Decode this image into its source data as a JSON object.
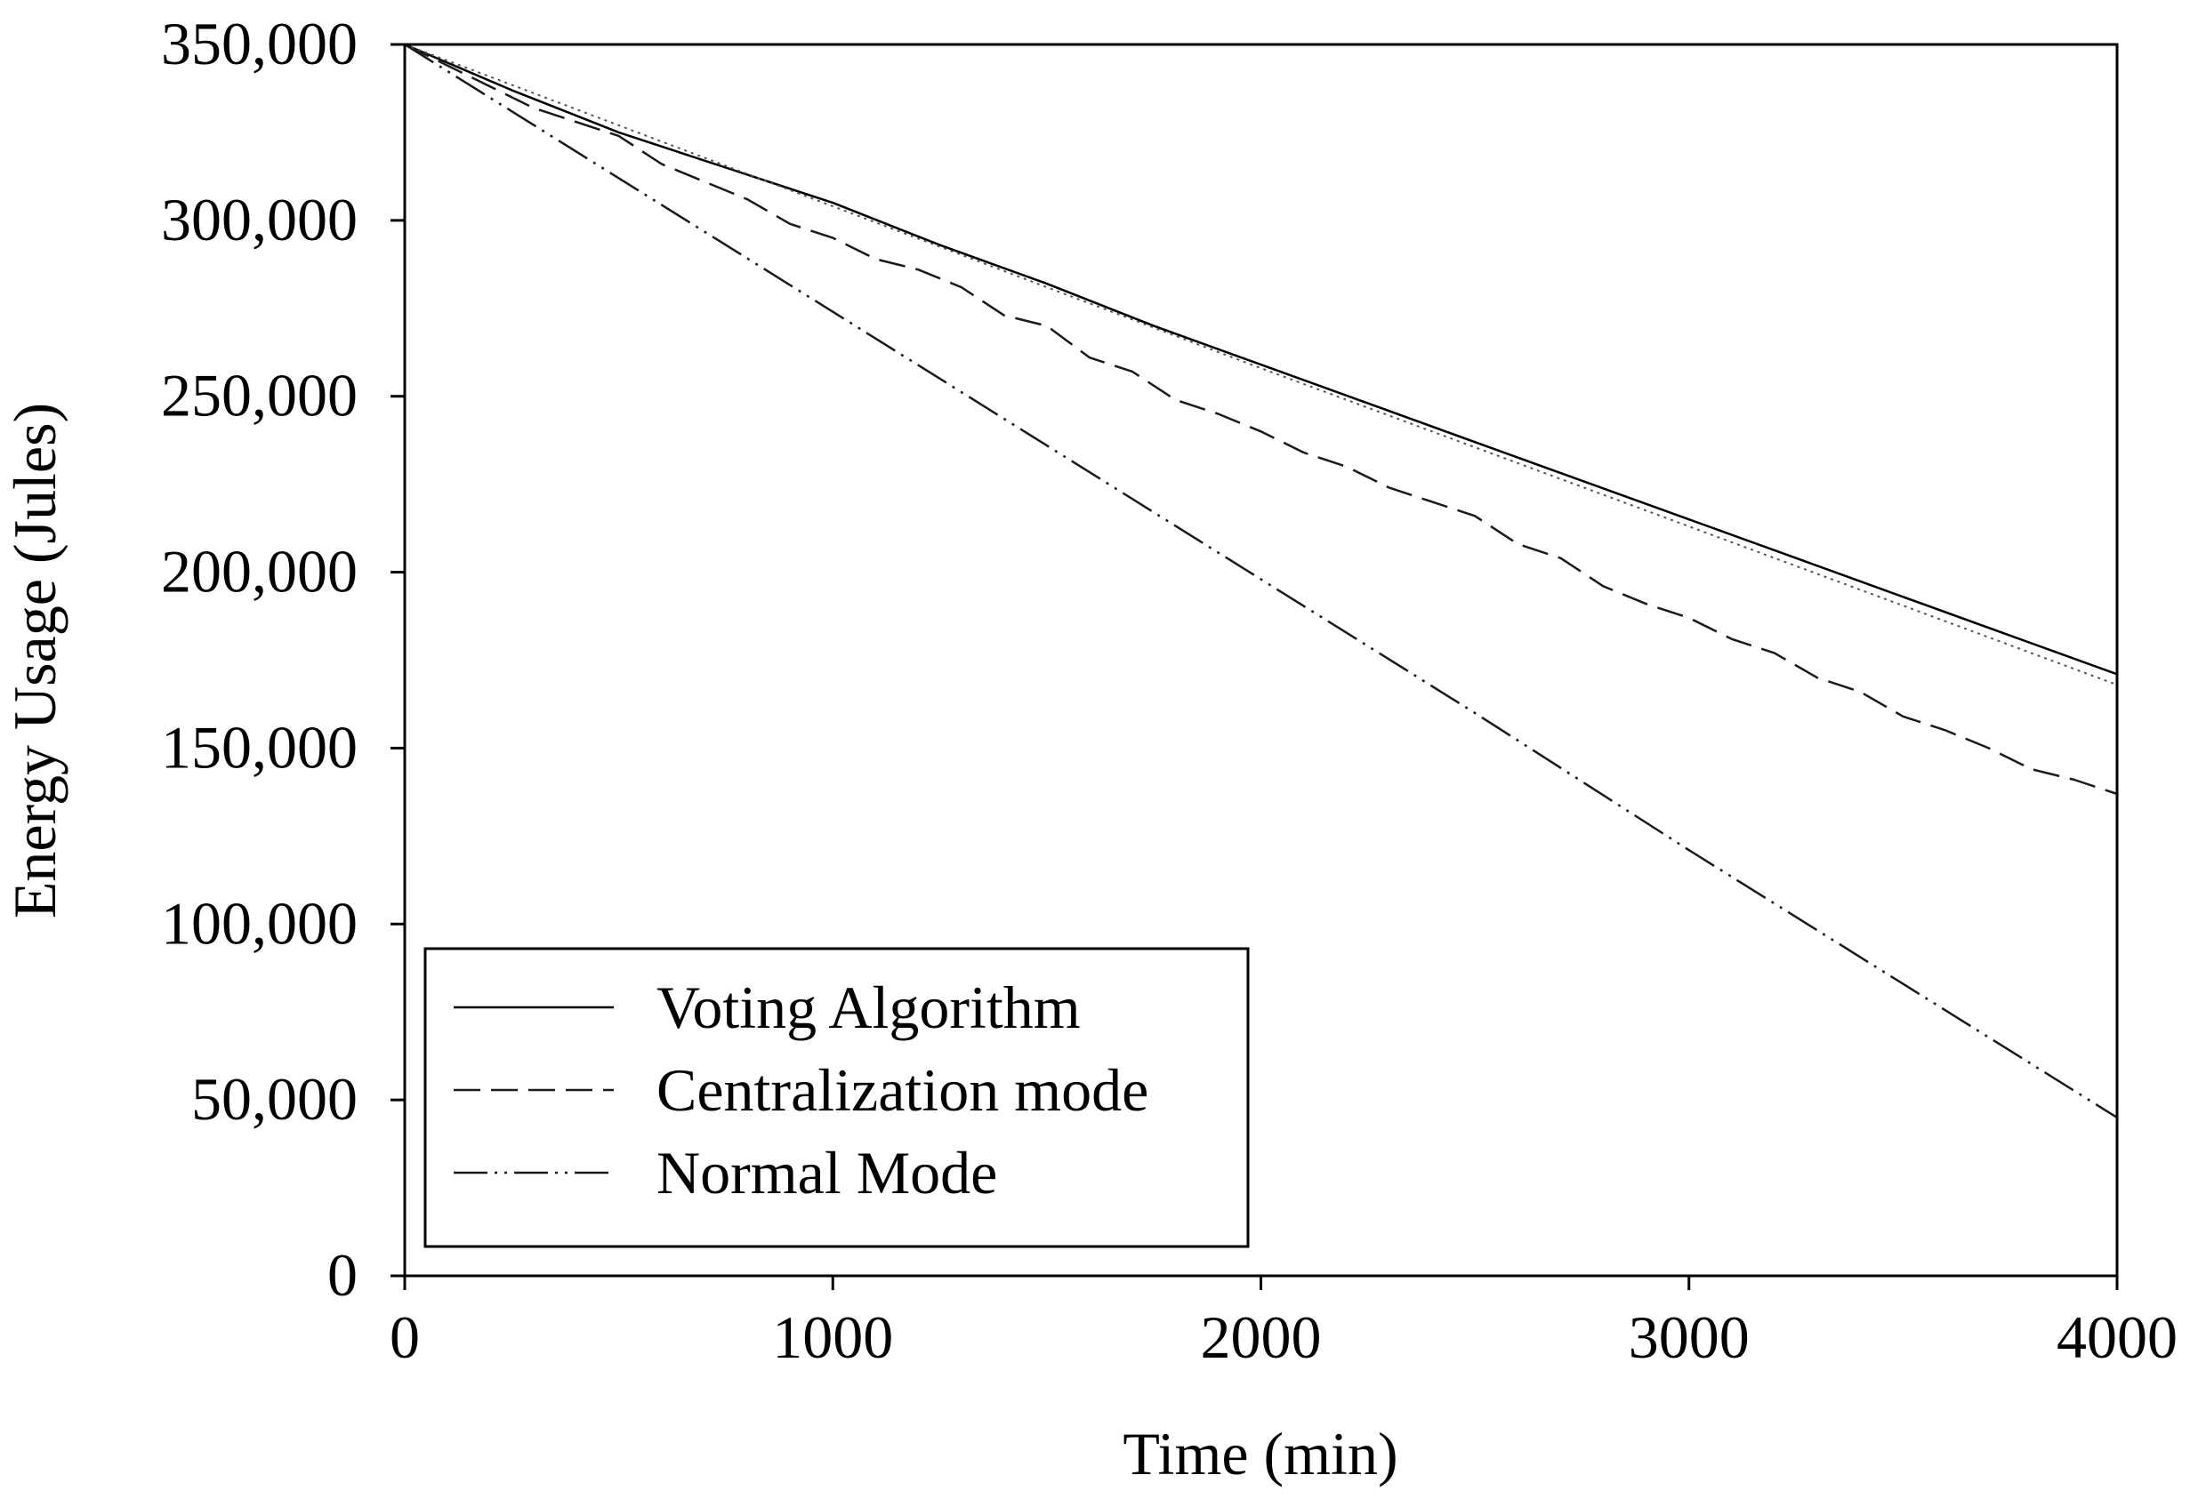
{
  "chart_data": {
    "type": "line",
    "title": "",
    "xlabel": "Time (min)",
    "ylabel": "Energy Usage (Jules)",
    "xlim": [
      0,
      4000
    ],
    "ylim": [
      0,
      350000
    ],
    "x_ticks": [
      0,
      1000,
      2000,
      3000,
      4000
    ],
    "x_tick_labels": [
      "0",
      "1000",
      "2000",
      "3000",
      "4000"
    ],
    "y_ticks": [
      0,
      50000,
      100000,
      150000,
      200000,
      250000,
      300000,
      350000
    ],
    "y_tick_labels": [
      "0",
      "50,000",
      "100,000",
      "150,000",
      "200,000",
      "250,000",
      "300,000",
      "350,000"
    ],
    "grid": false,
    "legend_position": "bottom-left",
    "series": [
      {
        "name": "Voting Algorithm",
        "style": "solid",
        "x": [
          0,
          250,
          500,
          750,
          1000,
          1250,
          1500,
          1750,
          2000,
          2250,
          2500,
          2750,
          3000,
          3250,
          3500,
          3750,
          4000
        ],
        "y": [
          350000,
          337000,
          325000,
          315000,
          305000,
          293000,
          282000,
          270000,
          259000,
          248000,
          237000,
          226000,
          215000,
          204000,
          193000,
          182000,
          171000
        ]
      },
      {
        "name": "Centralization mode",
        "style": "dashed",
        "x": [
          0,
          100,
          200,
          300,
          400,
          500,
          600,
          700,
          800,
          900,
          1000,
          1100,
          1200,
          1300,
          1400,
          1500,
          1600,
          1700,
          1800,
          1900,
          2000,
          2100,
          2200,
          2300,
          2400,
          2500,
          2600,
          2700,
          2800,
          2900,
          3000,
          3100,
          3200,
          3300,
          3400,
          3500,
          3600,
          3700,
          3800,
          3900,
          4000
        ],
        "y": [
          350000,
          344000,
          338000,
          332000,
          328000,
          324000,
          316000,
          311000,
          306000,
          299000,
          295000,
          289000,
          286000,
          281000,
          273000,
          270000,
          261000,
          257000,
          249000,
          245000,
          240000,
          234000,
          230000,
          224000,
          220000,
          216000,
          208000,
          204000,
          196000,
          191000,
          187000,
          181000,
          177000,
          170000,
          166000,
          159000,
          155000,
          150000,
          144000,
          141000,
          137000
        ]
      },
      {
        "name": "Normal Mode",
        "style": "dash-dot-dot",
        "x": [
          0,
          500,
          1000,
          1500,
          2000,
          2500,
          3000,
          3500,
          4000
        ],
        "y": [
          350000,
          312000,
          274000,
          236000,
          198000,
          160000,
          121000,
          83000,
          45000
        ]
      },
      {
        "name": "",
        "style": "dotted",
        "x": [
          0,
          1000,
          2000,
          3000,
          4000
        ],
        "y": [
          350000,
          304000,
          258000,
          213000,
          168000
        ]
      }
    ]
  }
}
